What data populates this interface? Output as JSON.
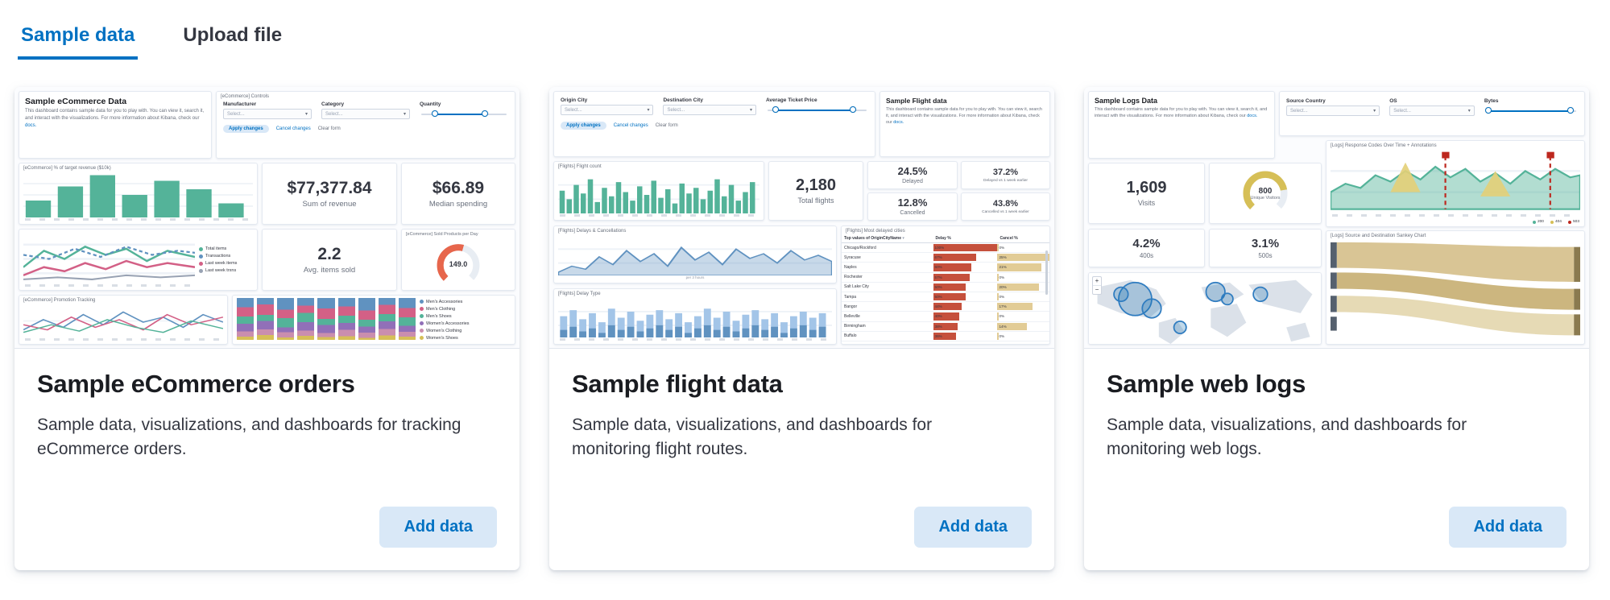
{
  "tabs": {
    "sample_data": "Sample data",
    "upload_file": "Upload file"
  },
  "shared": {
    "select_placeholder": "Select...",
    "apply": "Apply changes",
    "cancel": "Cancel changes",
    "clear": "Clear form",
    "overview_text": "This dashboard contains sample data for you to play with. You can view it, search it, and interact with the visualizations. For more information about Kibana, check our ",
    "docs_link": "docs.",
    "per_unit": "per 3 hours",
    "add_data": "Add data"
  },
  "ecommerce": {
    "title": "Sample eCommerce orders",
    "description": "Sample data, visualizations, and dashboards for tracking eCommerce orders.",
    "preview": {
      "overview_title": "Sample eCommerce Data",
      "controls_title": "[eCommerce] Controls",
      "manufacturer": "Manufacturer",
      "category": "Category",
      "quantity": "Quantity",
      "revenue_title": "[eCommerce] % of target revenue ($10k)",
      "sum_revenue_value": "$77,377.84",
      "sum_revenue_label": "Sum of revenue",
      "median_value": "$66.89",
      "median_label": "Median spending",
      "avg_items_value": "2.2",
      "avg_items_label": "Avg. items sold",
      "gauge_title": "[eCommerce] Sold Products per Day",
      "gauge_value": "149.0",
      "tx_legend": [
        "Total items",
        "Transactions",
        "Last week items",
        "Last week trxns"
      ],
      "promotion_title": "[eCommerce] Promotion Tracking",
      "category_legend": [
        "Men's Accessories",
        "Men's Clothing",
        "Men's Shoes",
        "Women's Accessories",
        "Women's Clothing",
        "Women's Shoes"
      ]
    }
  },
  "flights": {
    "title": "Sample flight data",
    "description": "Sample data, visualizations, and dashboards for monitoring flight routes.",
    "preview": {
      "origin_label": "Origin City",
      "destination_label": "Destination City",
      "price_label": "Average Ticket Price",
      "overview_title": "Sample Flight data",
      "count_title": "[Flights] Flight count",
      "total_value": "2,180",
      "total_label": "Total flights",
      "delayed_value": "24.5%",
      "delayed_label": "Delayed",
      "delayed_wow_value": "37.2%",
      "delayed_wow_label": "Delayed vs 1 week earlier",
      "cancelled_value": "12.8%",
      "cancelled_label": "Cancelled",
      "cancelled_wow_value": "43.8%",
      "cancelled_wow_label": "Cancelled vs 1 week earlier",
      "delays_title": "[Flights] Delays & Cancellations",
      "table_title": "[Flights] Most delayed cities",
      "col_city": "Top values of OriginCityName",
      "col_delay": "Delay %",
      "col_cancel": "Cancel %",
      "rows": [
        {
          "city": "Chicago/Rockford",
          "delay": "100%",
          "delay_w": 100,
          "cancel": "0%",
          "cancel_w": 2
        },
        {
          "city": "Syracuse",
          "delay": "67%",
          "delay_w": 67,
          "cancel": "25%",
          "cancel_w": 100
        },
        {
          "city": "Naples",
          "delay": "60%",
          "delay_w": 60,
          "cancel": "21%",
          "cancel_w": 84
        },
        {
          "city": "Rochester",
          "delay": "57%",
          "delay_w": 57,
          "cancel": "0%",
          "cancel_w": 2
        },
        {
          "city": "Salt Lake City",
          "delay": "50%",
          "delay_w": 50,
          "cancel": "20%",
          "cancel_w": 80
        },
        {
          "city": "Tampa",
          "delay": "50%",
          "delay_w": 50,
          "cancel": "0%",
          "cancel_w": 2
        },
        {
          "city": "Bangor",
          "delay": "44%",
          "delay_w": 44,
          "cancel": "17%",
          "cancel_w": 68
        },
        {
          "city": "Belleville",
          "delay": "40%",
          "delay_w": 40,
          "cancel": "0%",
          "cancel_w": 2
        },
        {
          "city": "Birmingham",
          "delay": "38%",
          "delay_w": 38,
          "cancel": "14%",
          "cancel_w": 56
        },
        {
          "city": "Buffalo",
          "delay": "36%",
          "delay_w": 36,
          "cancel": "0%",
          "cancel_w": 2
        }
      ],
      "delay_type_title": "[Flights] Delay Type"
    }
  },
  "logs": {
    "title": "Sample web logs",
    "description": "Sample data, visualizations, and dashboards for monitoring web logs.",
    "preview": {
      "overview_title": "Sample Logs Data",
      "source_country_label": "Source Country",
      "os_label": "OS",
      "bytes_label": "Bytes",
      "visits_value": "1,609",
      "visits_label": "Visits",
      "gauge_value": "800",
      "gauge_label": "Unique Visitors",
      "p400_value": "4.2%",
      "p400_label": "400s",
      "p500_value": "3.1%",
      "p500_label": "500s",
      "response_title": "[Logs] Response Codes Over Time + Annotations",
      "response_legend": [
        "200",
        "404",
        "503"
      ],
      "sankey_title": "[Logs] Source and Destination Sankey Chart"
    }
  }
}
